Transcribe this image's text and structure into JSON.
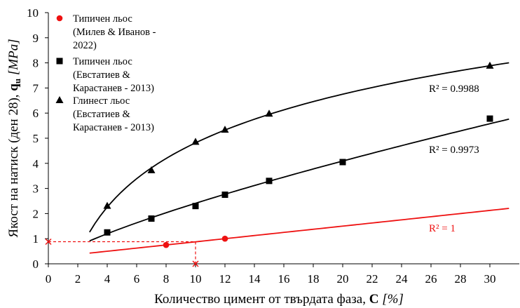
{
  "chart_data": {
    "type": "scatter",
    "xlabel": {
      "text": "Количество цимент от твърдата фаза, ",
      "symbol": "C",
      "unit": "[%]"
    },
    "ylabel": {
      "text": "Якост на натиск (ден 28), ",
      "symbol": "q",
      "subscript": "u",
      "unit": "[MPa]"
    },
    "xlim": [
      0,
      32
    ],
    "ylim": [
      0,
      10
    ],
    "xticks": [
      0,
      2,
      4,
      6,
      8,
      10,
      12,
      14,
      16,
      18,
      20,
      22,
      24,
      26,
      28,
      30
    ],
    "yticks": [
      0,
      1,
      2,
      3,
      4,
      5,
      6,
      7,
      8,
      9,
      10
    ],
    "grid": false,
    "legend_position": "top-left",
    "series": [
      {
        "name": [
          "Типичен льос",
          "(Милев & Иванов -",
          "2022)"
        ],
        "marker": "circle",
        "color": "#ee1111",
        "points": [
          [
            8,
            0.75
          ],
          [
            12,
            1.0
          ]
        ],
        "trendline": {
          "type": "linear",
          "x_range": [
            2.8,
            31.3
          ],
          "r2_label": "R² = 1"
        }
      },
      {
        "name": [
          "Типичен льос",
          "(Евстатиев &",
          "Карастанев - 2013)"
        ],
        "marker": "square",
        "color": "#000000",
        "points": [
          [
            4,
            1.25
          ],
          [
            7,
            1.8
          ],
          [
            10,
            2.3
          ],
          [
            12,
            2.75
          ],
          [
            15,
            3.3
          ],
          [
            20,
            4.05
          ],
          [
            30,
            5.78
          ]
        ],
        "trendline": {
          "type": "power",
          "x_range": [
            2.8,
            31.3
          ],
          "r2_label": "R² = 0.9973"
        }
      },
      {
        "name": [
          "Глинест льос",
          "(Евстатиев &",
          "Карастанев - 2013)"
        ],
        "marker": "triangle",
        "color": "#000000",
        "points": [
          [
            4,
            2.3
          ],
          [
            7,
            3.72
          ],
          [
            10,
            4.85
          ],
          [
            12,
            5.33
          ],
          [
            15,
            5.97
          ],
          [
            30,
            7.88
          ]
        ],
        "trendline": {
          "type": "logarithmic",
          "x_range": [
            2.8,
            31.3
          ],
          "r2_label": "R² = 0.9988"
        }
      }
    ],
    "annotation": {
      "type": "dashed-lookup",
      "color": "#ee1111",
      "point": [
        10,
        0.88
      ]
    }
  }
}
